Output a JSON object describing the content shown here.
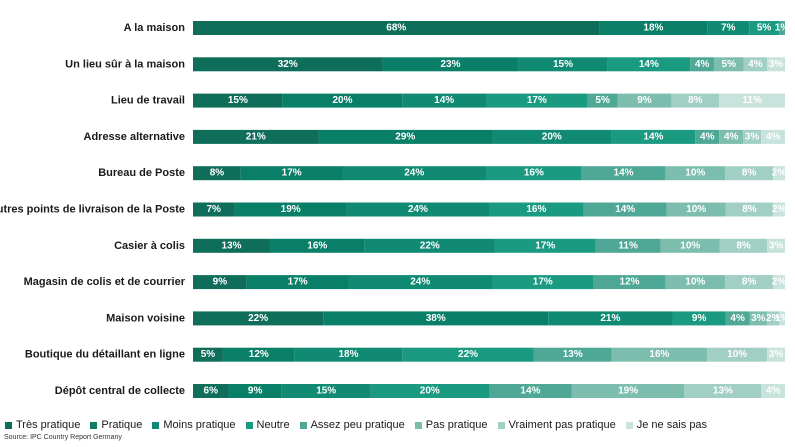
{
  "chart_data": {
    "type": "bar",
    "orientation": "horizontal",
    "stacked": true,
    "percent": true,
    "title": "",
    "xlabel": "",
    "ylabel": "",
    "xlim": [
      0,
      100
    ],
    "grid": false,
    "legend_position": "bottom",
    "categories": [
      "A la maison",
      "Un lieu sûr à la maison",
      "Lieu de travail",
      "Adresse alternative",
      "Bureau de Poste",
      "Autres points de livraison de la Poste",
      "Casier à colis",
      "Magasin de colis et de courrier",
      "Maison voisine",
      "Boutique du détaillant en ligne",
      "Dépôt central de collecte"
    ],
    "series": [
      {
        "name": "Très pratique",
        "color": "#0f6e5a",
        "values": [
          68,
          32,
          15,
          21,
          8,
          7,
          13,
          9,
          22,
          5,
          6
        ]
      },
      {
        "name": "Pratique",
        "color": "#0a7f68",
        "values": [
          18,
          23,
          20,
          29,
          17,
          19,
          16,
          17,
          38,
          12,
          9
        ]
      },
      {
        "name": "Moins pratique",
        "color": "#108a72",
        "values": [
          7,
          15,
          14,
          20,
          24,
          24,
          22,
          24,
          21,
          18,
          15
        ]
      },
      {
        "name": "Neutre",
        "color": "#1a9a80",
        "values": [
          5,
          14,
          17,
          14,
          16,
          16,
          17,
          17,
          9,
          22,
          20
        ]
      },
      {
        "name": "Assez peu pratique",
        "color": "#4ea895",
        "values": [
          1,
          4,
          5,
          4,
          14,
          14,
          11,
          12,
          4,
          13,
          14
        ]
      },
      {
        "name": "Pas pratique",
        "color": "#7dbdae",
        "values": [
          0,
          5,
          9,
          4,
          10,
          10,
          10,
          10,
          3,
          16,
          19
        ]
      },
      {
        "name": "Vraiment pas pratique",
        "color": "#a2cfc4",
        "values": [
          0,
          4,
          8,
          3,
          8,
          8,
          8,
          8,
          2,
          10,
          13
        ]
      },
      {
        "name": "Je ne sais pas",
        "color": "#c8e2dc",
        "values": [
          0,
          3,
          11,
          4,
          2,
          2,
          3,
          2,
          1,
          3,
          4
        ]
      }
    ],
    "value_labels": [
      [
        "68%",
        "18%",
        "7%",
        "5%",
        "1%",
        "",
        "",
        ""
      ],
      [
        "32%",
        "23%",
        "15%",
        "14%",
        "4%",
        "5%",
        "4%",
        "3%"
      ],
      [
        "15%",
        "20%",
        "14%",
        "17%",
        "5%",
        "9%",
        "8%",
        "11%"
      ],
      [
        "21%",
        "29%",
        "20%",
        "14%",
        "4%",
        "4%",
        "3%",
        "4%"
      ],
      [
        "8%",
        "17%",
        "24%",
        "16%",
        "14%",
        "10%",
        "8%",
        "2%"
      ],
      [
        "7%",
        "19%",
        "24%",
        "16%",
        "14%",
        "10%",
        "8%",
        "2%"
      ],
      [
        "13%",
        "16%",
        "22%",
        "17%",
        "11%",
        "10%",
        "8%",
        "3%"
      ],
      [
        "9%",
        "17%",
        "24%",
        "17%",
        "12%",
        "10%",
        "8%",
        "2%"
      ],
      [
        "22%",
        "38%",
        "21%",
        "9%",
        "4%",
        "3%",
        "2%",
        "1%"
      ],
      [
        "5%",
        "12%",
        "18%",
        "22%",
        "13%",
        "16%",
        "10%",
        "3%"
      ],
      [
        "6%",
        "9%",
        "15%",
        "20%",
        "14%",
        "19%",
        "13%",
        "4%"
      ]
    ]
  },
  "source": "Source: IPC Country Report Germany"
}
